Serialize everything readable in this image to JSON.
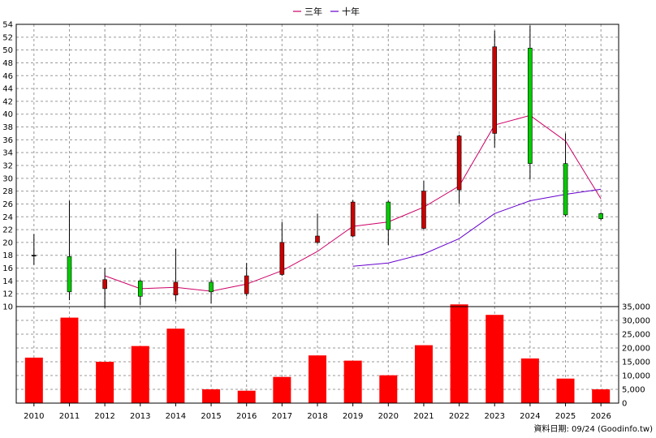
{
  "chart_data": {
    "type": "candlestick+bar",
    "legend": [
      {
        "name": "三年",
        "color": "#cc0066"
      },
      {
        "name": "十年",
        "color": "#6600cc"
      }
    ],
    "categories": [
      "2010",
      "2011",
      "2012",
      "2013",
      "2014",
      "2015",
      "2016",
      "2017",
      "2018",
      "2019",
      "2020",
      "2021",
      "2022",
      "2023",
      "2024",
      "2025",
      "2026"
    ],
    "price_axis": {
      "min": 10,
      "max": 54,
      "step": 2
    },
    "volume_axis": {
      "min": 0,
      "max": 35000,
      "step": 5000,
      "tick_labels": [
        "0",
        "5,000",
        "10,000",
        "15,000",
        "20,000",
        "25,000",
        "30,000",
        "35,000"
      ]
    },
    "candles": [
      {
        "open": 18.0,
        "close": 18.0,
        "high": 21.3,
        "low": 16.5,
        "color": "#000000"
      },
      {
        "open": 17.8,
        "close": 12.3,
        "high": 26.5,
        "low": 11.0,
        "color": "#00cc00"
      },
      {
        "open": 12.8,
        "close": 14.2,
        "high": 16.0,
        "low": 9.8,
        "color": "#cc0000"
      },
      {
        "open": 14.0,
        "close": 11.6,
        "high": 14.2,
        "low": 10.2,
        "color": "#00cc00"
      },
      {
        "open": 11.8,
        "close": 13.8,
        "high": 19.0,
        "low": 10.8,
        "color": "#cc0000"
      },
      {
        "open": 13.8,
        "close": 12.3,
        "high": 14.2,
        "low": 10.5,
        "color": "#00cc00"
      },
      {
        "open": 12.0,
        "close": 14.8,
        "high": 16.8,
        "low": 11.6,
        "color": "#cc0000"
      },
      {
        "open": 15.0,
        "close": 20.0,
        "high": 23.2,
        "low": 14.8,
        "color": "#cc0000"
      },
      {
        "open": 20.0,
        "close": 21.0,
        "high": 24.5,
        "low": 19.8,
        "color": "#cc0000"
      },
      {
        "open": 21.0,
        "close": 26.3,
        "high": 26.6,
        "low": 20.8,
        "color": "#cc0000"
      },
      {
        "open": 26.3,
        "close": 22.0,
        "high": 26.5,
        "low": 19.6,
        "color": "#00cc00"
      },
      {
        "open": 22.2,
        "close": 28.0,
        "high": 29.6,
        "low": 22.0,
        "color": "#cc0000"
      },
      {
        "open": 28.2,
        "close": 36.6,
        "high": 36.8,
        "low": 26.0,
        "color": "#cc0000"
      },
      {
        "open": 37.0,
        "close": 50.5,
        "high": 53.0,
        "low": 34.8,
        "color": "#cc0000"
      },
      {
        "open": 50.3,
        "close": 32.3,
        "high": 53.8,
        "low": 29.8,
        "color": "#00cc00"
      },
      {
        "open": 32.3,
        "close": 24.3,
        "high": 37.0,
        "low": 24.0,
        "color": "#00cc00"
      },
      {
        "open": 24.5,
        "close": 23.7,
        "high": 24.7,
        "low": 23.5,
        "color": "#00cc00"
      }
    ],
    "series": [
      {
        "name": "三年",
        "color": "#cc0066",
        "values": [
          null,
          null,
          14.8,
          12.8,
          13.0,
          12.4,
          13.5,
          15.6,
          18.6,
          22.5,
          23.2,
          25.5,
          28.8,
          38.3,
          39.8,
          35.8,
          26.8
        ]
      },
      {
        "name": "十年",
        "color": "#6600cc",
        "values": [
          null,
          null,
          null,
          null,
          null,
          null,
          null,
          null,
          null,
          16.3,
          16.8,
          18.2,
          20.6,
          24.5,
          26.5,
          27.5,
          28.3
        ]
      }
    ],
    "volume": {
      "color": "#ff0000",
      "values": [
        16500,
        31000,
        15000,
        20700,
        27000,
        5000,
        4500,
        9500,
        17300,
        15400,
        10100,
        21000,
        35800,
        32000,
        16200,
        8900,
        5000
      ]
    }
  },
  "footer": {
    "source": "資料日期: 09/24 (Goodinfo.tw)"
  }
}
